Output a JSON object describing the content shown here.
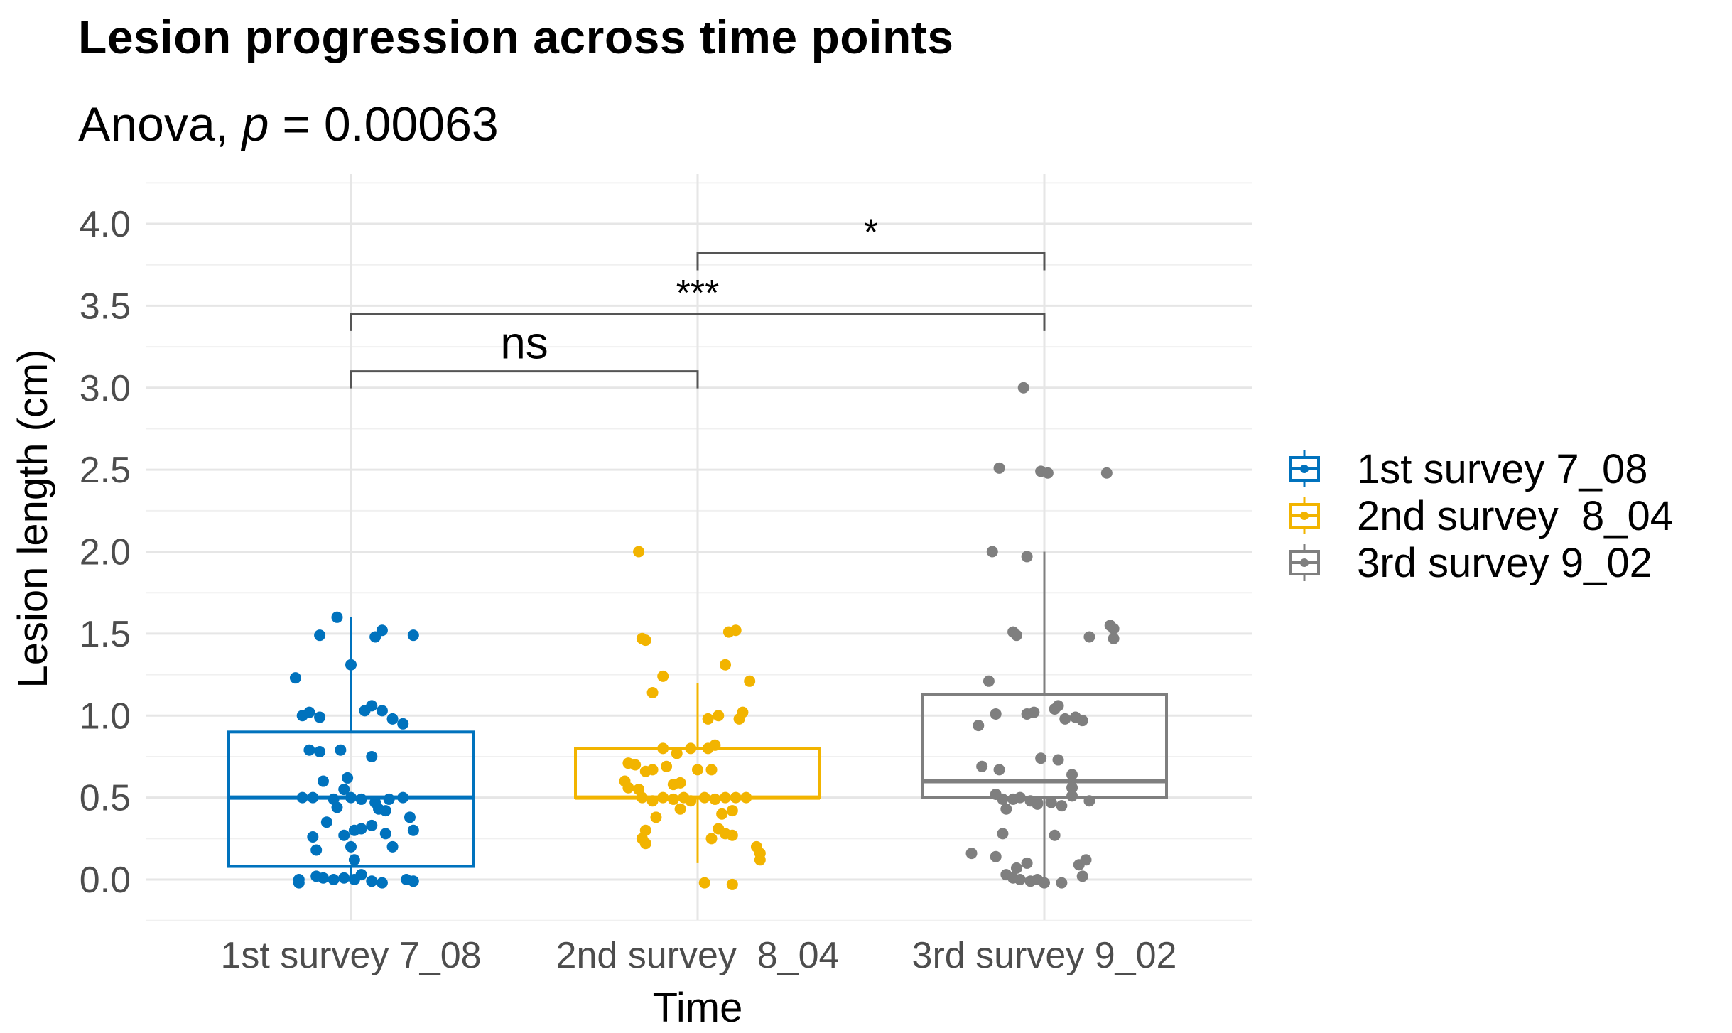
{
  "chart_data": {
    "type": "box",
    "title": "Lesion progression across time points",
    "subtitle_prefix": "Anova, ",
    "subtitle_p": "p",
    "subtitle_value": " = 0.00063",
    "xlabel": "Time",
    "ylabel": "Lesion length (cm)",
    "ylim": [
      -0.25,
      4.35
    ],
    "yticks": [
      0.0,
      0.5,
      1.0,
      1.5,
      2.0,
      2.5,
      3.0,
      3.5,
      4.0
    ],
    "ytick_labels": [
      "0.0",
      "0.5",
      "1.0",
      "1.5",
      "2.0",
      "2.5",
      "3.0",
      "3.5",
      "4.0"
    ],
    "legend_position": "right",
    "groups": [
      {
        "name": "1st survey 7_08",
        "legend_label": "1st survey 7_08",
        "color": "#0072BD",
        "box": {
          "q1": 0.08,
          "median": 0.5,
          "q3": 0.9,
          "whisker_low": 0.0,
          "whisker_high": 1.6
        },
        "points": [
          [
            -0.16,
            1.23
          ],
          [
            -0.09,
            1.49
          ],
          [
            -0.04,
            1.6
          ],
          [
            0.07,
            1.48
          ],
          [
            0.09,
            1.52
          ],
          [
            0.18,
            1.49
          ],
          [
            0.0,
            1.31
          ],
          [
            -0.14,
            1.0
          ],
          [
            -0.12,
            1.02
          ],
          [
            -0.09,
            0.99
          ],
          [
            0.04,
            1.03
          ],
          [
            0.06,
            1.06
          ],
          [
            0.09,
            1.03
          ],
          [
            0.15,
            0.95
          ],
          [
            0.12,
            0.98
          ],
          [
            -0.12,
            0.79
          ],
          [
            -0.09,
            0.78
          ],
          [
            -0.03,
            0.79
          ],
          [
            0.06,
            0.75
          ],
          [
            -0.08,
            0.6
          ],
          [
            -0.01,
            0.62
          ],
          [
            -0.02,
            0.55
          ],
          [
            -0.14,
            0.5
          ],
          [
            -0.11,
            0.5
          ],
          [
            -0.05,
            0.49
          ],
          [
            0.0,
            0.5
          ],
          [
            0.03,
            0.49
          ],
          [
            0.07,
            0.47
          ],
          [
            0.11,
            0.49
          ],
          [
            0.15,
            0.5
          ],
          [
            -0.04,
            0.44
          ],
          [
            0.08,
            0.43
          ],
          [
            0.1,
            0.42
          ],
          [
            -0.07,
            0.35
          ],
          [
            0.06,
            0.33
          ],
          [
            0.17,
            0.38
          ],
          [
            0.18,
            0.3
          ],
          [
            0.01,
            0.3
          ],
          [
            0.03,
            0.31
          ],
          [
            -0.02,
            0.27
          ],
          [
            -0.11,
            0.26
          ],
          [
            -0.1,
            0.18
          ],
          [
            0.0,
            0.2
          ],
          [
            0.12,
            0.2
          ],
          [
            0.1,
            0.28
          ],
          [
            0.01,
            0.12
          ],
          [
            -0.15,
            0.0
          ],
          [
            -0.15,
            -0.02
          ],
          [
            -0.1,
            0.02
          ],
          [
            -0.08,
            0.01
          ],
          [
            -0.05,
            0.0
          ],
          [
            -0.02,
            0.01
          ],
          [
            0.01,
            0.0
          ],
          [
            0.03,
            0.03
          ],
          [
            0.06,
            -0.01
          ],
          [
            0.09,
            -0.02
          ],
          [
            0.16,
            0.0
          ],
          [
            0.18,
            -0.01
          ]
        ]
      },
      {
        "name": "2nd survey  8_04",
        "legend_label": "2nd survey  8_04",
        "color": "#F2B400",
        "box": {
          "q1": 0.5,
          "median": 0.5,
          "q3": 0.8,
          "whisker_low": 0.1,
          "whisker_high": 1.2
        },
        "points": [
          [
            -0.17,
            2.0
          ],
          [
            -0.16,
            1.47
          ],
          [
            -0.15,
            1.46
          ],
          [
            0.09,
            1.51
          ],
          [
            0.11,
            1.52
          ],
          [
            0.08,
            1.31
          ],
          [
            -0.1,
            1.24
          ],
          [
            -0.13,
            1.14
          ],
          [
            0.15,
            1.21
          ],
          [
            0.06,
            1.0
          ],
          [
            0.13,
            1.02
          ],
          [
            0.12,
            0.98
          ],
          [
            0.03,
            0.98
          ],
          [
            -0.1,
            0.8
          ],
          [
            -0.06,
            0.77
          ],
          [
            -0.02,
            0.8
          ],
          [
            0.03,
            0.8
          ],
          [
            0.05,
            0.82
          ],
          [
            -0.2,
            0.71
          ],
          [
            -0.18,
            0.7
          ],
          [
            -0.15,
            0.66
          ],
          [
            -0.13,
            0.67
          ],
          [
            -0.09,
            0.69
          ],
          [
            0.0,
            0.67
          ],
          [
            0.04,
            0.67
          ],
          [
            -0.21,
            0.6
          ],
          [
            -0.2,
            0.56
          ],
          [
            -0.17,
            0.55
          ],
          [
            -0.07,
            0.58
          ],
          [
            -0.05,
            0.59
          ],
          [
            -0.16,
            0.5
          ],
          [
            -0.13,
            0.48
          ],
          [
            -0.1,
            0.5
          ],
          [
            -0.07,
            0.49
          ],
          [
            -0.04,
            0.5
          ],
          [
            -0.02,
            0.48
          ],
          [
            0.02,
            0.5
          ],
          [
            0.05,
            0.49
          ],
          [
            0.08,
            0.5
          ],
          [
            0.11,
            0.5
          ],
          [
            0.14,
            0.5
          ],
          [
            -0.05,
            0.43
          ],
          [
            0.07,
            0.4
          ],
          [
            0.1,
            0.42
          ],
          [
            -0.12,
            0.38
          ],
          [
            0.06,
            0.31
          ],
          [
            0.08,
            0.28
          ],
          [
            0.1,
            0.27
          ],
          [
            0.04,
            0.25
          ],
          [
            -0.15,
            0.3
          ],
          [
            -0.16,
            0.25
          ],
          [
            -0.15,
            0.22
          ],
          [
            0.17,
            0.2
          ],
          [
            0.18,
            0.16
          ],
          [
            0.18,
            0.12
          ],
          [
            0.02,
            -0.02
          ],
          [
            0.1,
            -0.03
          ]
        ]
      },
      {
        "name": "3rd survey 9_02",
        "legend_label": "3rd survey 9_02",
        "color": "#7F7F7F",
        "box": {
          "q1": 0.5,
          "median": 0.6,
          "q3": 1.13,
          "whisker_low": 0.0,
          "whisker_high": 2.0
        },
        "points": [
          [
            -0.06,
            3.0
          ],
          [
            -0.13,
            2.51
          ],
          [
            -0.01,
            2.49
          ],
          [
            0.01,
            2.48
          ],
          [
            0.18,
            2.48
          ],
          [
            -0.15,
            2.0
          ],
          [
            -0.05,
            1.97
          ],
          [
            -0.09,
            1.51
          ],
          [
            -0.08,
            1.49
          ],
          [
            0.13,
            1.48
          ],
          [
            0.19,
            1.55
          ],
          [
            0.2,
            1.53
          ],
          [
            0.2,
            1.47
          ],
          [
            -0.16,
            1.21
          ],
          [
            -0.19,
            0.94
          ],
          [
            -0.14,
            1.01
          ],
          [
            -0.05,
            1.01
          ],
          [
            -0.03,
            1.02
          ],
          [
            0.03,
            1.04
          ],
          [
            0.04,
            1.06
          ],
          [
            0.06,
            0.98
          ],
          [
            0.09,
            0.99
          ],
          [
            0.11,
            0.97
          ],
          [
            -0.18,
            0.69
          ],
          [
            -0.13,
            0.67
          ],
          [
            -0.01,
            0.74
          ],
          [
            0.04,
            0.73
          ],
          [
            0.08,
            0.64
          ],
          [
            0.08,
            0.56
          ],
          [
            -0.14,
            0.52
          ],
          [
            -0.12,
            0.49
          ],
          [
            -0.09,
            0.49
          ],
          [
            -0.07,
            0.5
          ],
          [
            -0.04,
            0.48
          ],
          [
            -0.02,
            0.47
          ],
          [
            0.02,
            0.47
          ],
          [
            0.08,
            0.51
          ],
          [
            0.13,
            0.48
          ],
          [
            -0.11,
            0.43
          ],
          [
            -0.02,
            0.46
          ],
          [
            0.05,
            0.45
          ],
          [
            -0.12,
            0.28
          ],
          [
            0.03,
            0.27
          ],
          [
            -0.21,
            0.16
          ],
          [
            -0.14,
            0.14
          ],
          [
            0.1,
            0.09
          ],
          [
            0.12,
            0.12
          ],
          [
            -0.08,
            0.07
          ],
          [
            -0.05,
            0.1
          ],
          [
            -0.11,
            0.03
          ],
          [
            -0.09,
            0.01
          ],
          [
            -0.07,
            0.0
          ],
          [
            -0.04,
            -0.01
          ],
          [
            -0.02,
            0.0
          ],
          [
            0.0,
            -0.02
          ],
          [
            0.05,
            -0.02
          ],
          [
            0.11,
            0.02
          ]
        ]
      }
    ],
    "comparisons": [
      {
        "from": 0,
        "to": 1,
        "y": 3.1,
        "label": "ns"
      },
      {
        "from": 0,
        "to": 2,
        "y": 3.45,
        "label": "***"
      },
      {
        "from": 1,
        "to": 2,
        "y": 3.82,
        "label": "*"
      }
    ]
  }
}
